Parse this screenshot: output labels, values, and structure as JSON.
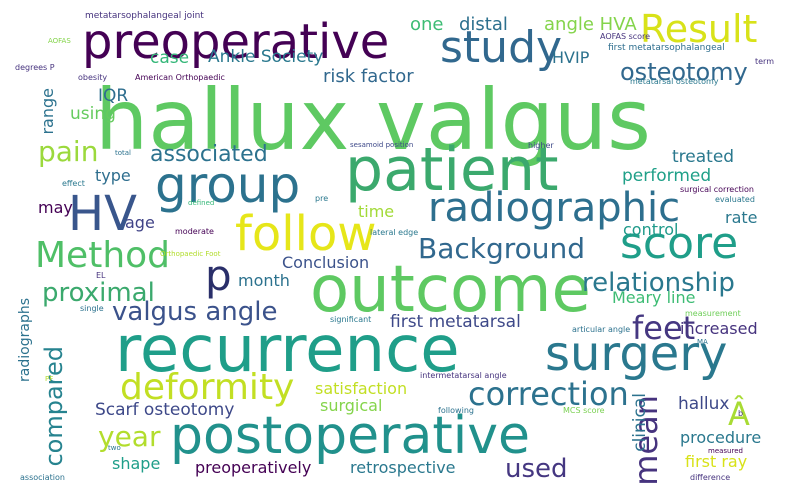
{
  "words": {
    "hallux_valgus": {
      "text": "hallux valgus",
      "color": "#5ec962"
    },
    "recurrence": {
      "text": "recurrence",
      "color": "#1f9e89"
    },
    "outcome": {
      "text": "outcome",
      "color": "#5ec962"
    },
    "patient": {
      "text": "patient",
      "color": "#3ba96d"
    },
    "postoperative": {
      "text": "postoperative",
      "color": "#21918c"
    },
    "preoperative": {
      "text": "preoperative",
      "color": "#440154"
    },
    "study": {
      "text": "study",
      "color": "#31688e"
    },
    "group": {
      "text": "group",
      "color": "#2c728e"
    },
    "surgery": {
      "text": "surgery",
      "color": "#2a788e"
    },
    "hv": {
      "text": "HV",
      "color": "#39568c"
    },
    "follow": {
      "text": "follow",
      "color": "#e6e619"
    },
    "radiographic": {
      "text": "radiographic",
      "color": "#2d6f8e"
    },
    "score": {
      "text": "score",
      "color": "#1f9e89"
    },
    "result": {
      "text": "Result",
      "color": "#d8e219"
    },
    "method": {
      "text": "Method",
      "color": "#4fbf67"
    },
    "p": {
      "text": "p",
      "color": "#2a2f6a"
    },
    "deformity": {
      "text": "deformity",
      "color": "#c2df23"
    },
    "correction": {
      "text": "correction",
      "color": "#2c728e"
    },
    "background": {
      "text": "Background",
      "color": "#31688e"
    },
    "feet": {
      "text": "feet",
      "color": "#453781"
    },
    "mean": {
      "text": "mean",
      "color": "#46337e"
    },
    "a_circ": {
      "text": "Â",
      "color": "#a8db34"
    },
    "valgus_angle": {
      "text": "valgus angle",
      "color": "#3b528b"
    },
    "relationship": {
      "text": "relationship",
      "color": "#2a788e"
    },
    "proximal": {
      "text": "proximal",
      "color": "#3ba96d"
    },
    "osteotomy": {
      "text": "osteotomy",
      "color": "#31688e"
    },
    "associated": {
      "text": "associated",
      "color": "#2c728e"
    },
    "year": {
      "text": "year",
      "color": "#b2dd2d"
    },
    "compared": {
      "text": "compared",
      "color": "#26838f"
    },
    "pain": {
      "text": "pain",
      "color": "#9bd93c"
    },
    "used": {
      "text": "used",
      "color": "#453781"
    },
    "scarf_osteotomy": {
      "text": "Scarf osteotomy",
      "color": "#3e4989"
    },
    "first_metatarsal": {
      "text": "first metatarsal",
      "color": "#3e4989"
    },
    "risk_factor": {
      "text": "risk factor",
      "color": "#31688e"
    },
    "ankle_society": {
      "text": "Ankle Society",
      "color": "#2a788e"
    },
    "case": {
      "text": "case",
      "color": "#35b779"
    },
    "angle_hva": {
      "text": "angle HVA",
      "color": "#84d44b"
    },
    "distal": {
      "text": "distal",
      "color": "#2d708e"
    },
    "one": {
      "text": "one",
      "color": "#3dbc74"
    },
    "hvip": {
      "text": "HVIP",
      "color": "#2c728e"
    },
    "iqr": {
      "text": "IQR",
      "color": "#2e6e8e"
    },
    "using": {
      "text": "using",
      "color": "#65cb5e"
    },
    "range": {
      "text": "range",
      "color": "#2c728e"
    },
    "treated": {
      "text": "treated",
      "color": "#2a788e"
    },
    "performed": {
      "text": "performed",
      "color": "#1fa088"
    },
    "type": {
      "text": "type",
      "color": "#2e6e8e"
    },
    "may": {
      "text": "may",
      "color": "#440154"
    },
    "age": {
      "text": "age",
      "color": "#404387"
    },
    "time": {
      "text": "time",
      "color": "#a2da37"
    },
    "control": {
      "text": "control",
      "color": "#1f9a8a"
    },
    "rate": {
      "text": "rate",
      "color": "#2a788e"
    },
    "conclusion": {
      "text": "Conclusion",
      "color": "#3b528b"
    },
    "month": {
      "text": "month",
      "color": "#2c728e"
    },
    "meary_line": {
      "text": "Meary line",
      "color": "#3dbc74"
    },
    "increased": {
      "text": "increased",
      "color": "#46337e"
    },
    "satisfaction": {
      "text": "satisfaction",
      "color": "#c2df23"
    },
    "surgical": {
      "text": "surgical",
      "color": "#84d44b"
    },
    "hallux": {
      "text": "hallux",
      "color": "#3e4989"
    },
    "clinical": {
      "text": "clinical",
      "color": "#2c728e"
    },
    "procedure": {
      "text": "procedure",
      "color": "#2a788e"
    },
    "first_ray": {
      "text": "first ray",
      "color": "#d8e219"
    },
    "shape": {
      "text": "shape",
      "color": "#1f9e89"
    },
    "preoperatively": {
      "text": "preoperatively",
      "color": "#440154"
    },
    "retrospective": {
      "text": "retrospective",
      "color": "#2a788e"
    },
    "radiographs": {
      "text": "radiographs",
      "color": "#2c728e"
    },
    "metatarsophalangeal_joint": {
      "text": "metatarsophalangeal joint",
      "color": "#46337e"
    },
    "aofas_score": {
      "text": "AOFAS score",
      "color": "#46337e"
    },
    "first_mtp": {
      "text": "first metatarsophalangeal",
      "color": "#2e6e8e"
    },
    "metatarsal_osteotomy": {
      "text": "metatarsal osteotomy",
      "color": "#2a788e"
    },
    "term": {
      "text": "term",
      "color": "#46337e"
    },
    "aofas": {
      "text": "AOFAS",
      "color": "#84d44b"
    },
    "degrees_p": {
      "text": "degrees P",
      "color": "#46337e"
    },
    "obesity": {
      "text": "obesity",
      "color": "#46337e"
    },
    "american_orthopaedic": {
      "text": "American Orthopaedic",
      "color": "#440154"
    },
    "total": {
      "text": "total",
      "color": "#2c728e"
    },
    "effect": {
      "text": "effect",
      "color": "#2a788e"
    },
    "defined": {
      "text": "defined",
      "color": "#35b779"
    },
    "pre": {
      "text": "pre",
      "color": "#2a788e"
    },
    "sesamoid_position": {
      "text": "sesamoid position",
      "color": "#3e4989"
    },
    "higher": {
      "text": "higher",
      "color": "#3e4989"
    },
    "moderate": {
      "text": "moderate",
      "color": "#440154"
    },
    "orthopaedic_foot": {
      "text": "Orthopaedic Foot",
      "color": "#b2dd2d"
    },
    "lateral_edge": {
      "text": "lateral edge",
      "color": "#2a788e"
    },
    "surgical_correction": {
      "text": "surgical correction",
      "color": "#440154"
    },
    "evaluated": {
      "text": "evaluated",
      "color": "#2a788e"
    },
    "el": {
      "text": "EL",
      "color": "#46337e"
    },
    "measurement": {
      "text": "measurement",
      "color": "#6ece58"
    },
    "single": {
      "text": "single",
      "color": "#2c728e"
    },
    "significant": {
      "text": "significant",
      "color": "#2a788e"
    },
    "articular_angle": {
      "text": "articular angle",
      "color": "#2c728e"
    },
    "ma": {
      "text": "MA",
      "color": "#2c728e"
    },
    "intermetatarsal_angle": {
      "text": "intermetatarsal angle",
      "color": "#46337e"
    },
    "following": {
      "text": "following",
      "color": "#2c728e"
    },
    "mcs_score": {
      "text": "MCS score",
      "color": "#7ad151"
    },
    "two": {
      "text": "two",
      "color": "#2a788e"
    },
    "measured": {
      "text": "measured",
      "color": "#440154"
    },
    "association": {
      "text": "association",
      "color": "#2c728e"
    },
    "difference": {
      "text": "difference",
      "color": "#46337e"
    },
    "pf": {
      "text": "PF",
      "color": "#b2dd2d"
    },
    "b_small": {
      "text": "b",
      "color": "#46337e"
    }
  }
}
